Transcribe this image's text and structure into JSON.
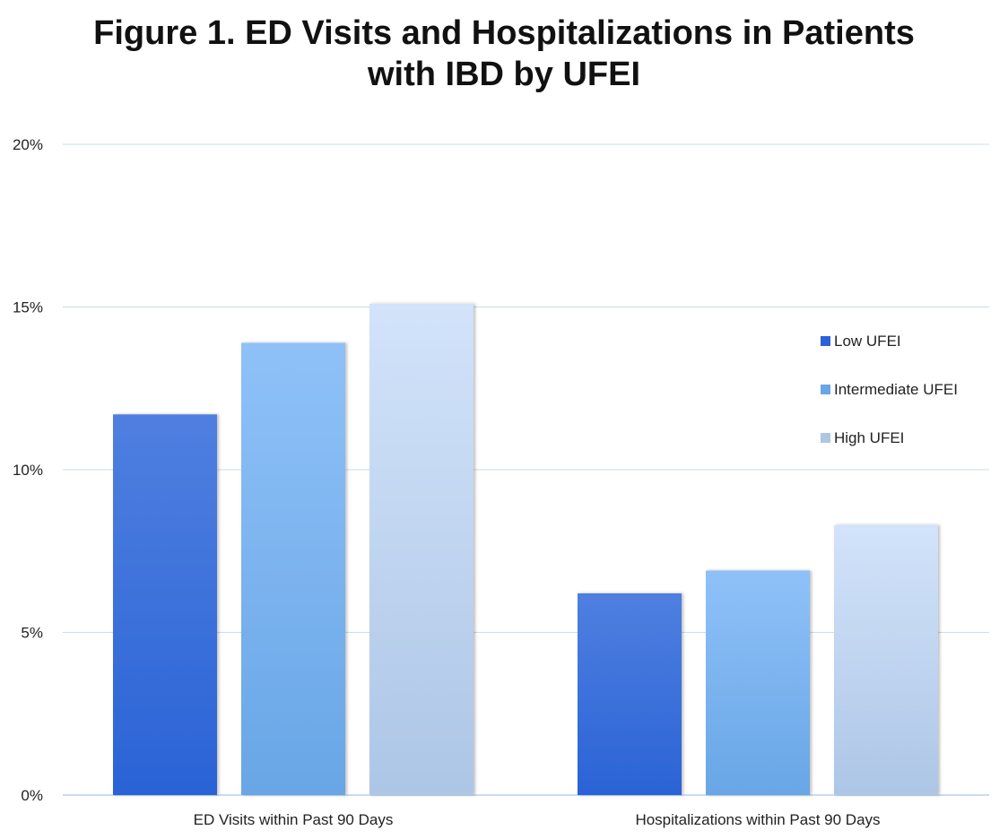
{
  "chart_data": {
    "type": "bar",
    "title_line1": "Figure 1. ED Visits and Hospitalizations in Patients",
    "title_line2": "with IBD by UFEI",
    "xlabel": "",
    "ylabel": "",
    "ylim": [
      0,
      20
    ],
    "yticks": [
      0,
      5,
      10,
      15,
      20
    ],
    "ytick_labels": [
      "0%",
      "5%",
      "10%",
      "15%",
      "20%"
    ],
    "grid": true,
    "legend_position": "right",
    "categories": [
      "ED Visits within Past 90 Days",
      "Hospitalizations within Past 90 Days"
    ],
    "series": [
      {
        "name": "Low UFEI",
        "values": [
          11.7,
          6.2
        ],
        "color_top": "#4f7fe0",
        "color_bottom": "#2a63d6"
      },
      {
        "name": "Intermediate UFEI",
        "values": [
          13.9,
          6.9
        ],
        "color_top": "#8fc1f8",
        "color_bottom": "#68a6e6"
      },
      {
        "name": "High UFEI",
        "values": [
          15.1,
          8.3
        ],
        "color_top": "#d2e3fa",
        "color_bottom": "#adc6e6"
      }
    ],
    "gridline_color": "#c9dcf2"
  }
}
